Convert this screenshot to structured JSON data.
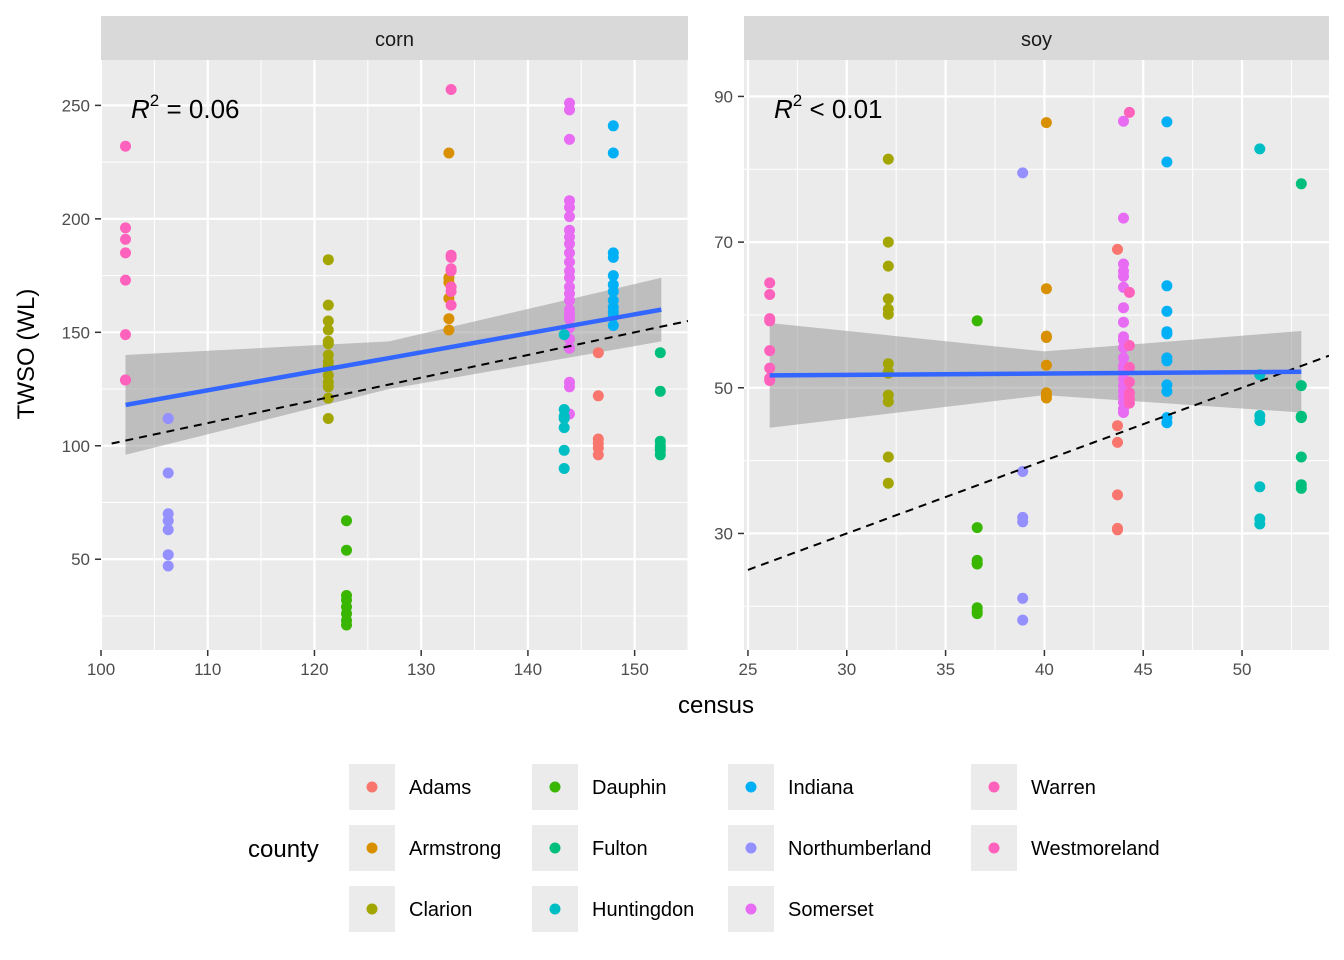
{
  "chart_data": {
    "type": "scatter",
    "xlabel": "census",
    "ylabel": "TWSO (WL)",
    "legend": {
      "title": "county",
      "position": "bottom",
      "entries": [
        {
          "name": "Adams",
          "color": "#F8766D"
        },
        {
          "name": "Armstrong",
          "color": "#D89000"
        },
        {
          "name": "Clarion",
          "color": "#A3A500"
        },
        {
          "name": "Dauphin",
          "color": "#39B600"
        },
        {
          "name": "Fulton",
          "color": "#00BF7D"
        },
        {
          "name": "Huntingdon",
          "color": "#00BFC4"
        },
        {
          "name": "Indiana",
          "color": "#00B0F6"
        },
        {
          "name": "Northumberland",
          "color": "#9590FF"
        },
        {
          "name": "Somerset",
          "color": "#E76BF3"
        },
        {
          "name": "Warren",
          "color": "#FF62BC"
        },
        {
          "name": "Westmoreland",
          "color": "#FF62BC"
        }
      ]
    },
    "panels": [
      {
        "strip": "corn",
        "r2_label": "R",
        "r2_sup": "2",
        "r2_value": " = 0.06",
        "xlim": [
          100,
          155
        ],
        "ylim": [
          10,
          270
        ],
        "xticks": [
          100,
          110,
          120,
          130,
          140,
          150
        ],
        "yticks": [
          50,
          100,
          150,
          200,
          250
        ],
        "fit_line": {
          "x": [
            102.3,
            152.5
          ],
          "y": [
            118,
            160
          ]
        },
        "ci_band": {
          "x": [
            102.3,
            127,
            152.5
          ],
          "upper": [
            140,
            146,
            174
          ],
          "lower": [
            96,
            125,
            146
          ]
        },
        "identity_line": {
          "x": [
            101,
            155
          ],
          "y": [
            101,
            155
          ]
        },
        "series": [
          {
            "county": "Warren",
            "x": [
              102.3,
              102.3,
              102.3,
              102.3,
              102.3,
              102.3,
              102.3,
              102.3
            ],
            "y": [
              232,
              196,
              191,
              185,
              173,
              149,
              129,
              129
            ]
          },
          {
            "county": "Northumberland",
            "x": [
              106.3,
              106.3,
              106.3,
              106.3,
              106.3,
              106.3,
              106.3,
              106.3
            ],
            "y": [
              112,
              88,
              70,
              67,
              63,
              52,
              47,
              112
            ]
          },
          {
            "county": "Clarion",
            "x": [
              121.3,
              121.3,
              121.3,
              121.3,
              121.3,
              121.3,
              121.3,
              121.3,
              121.3,
              121.3,
              121.3,
              121.3,
              121.3,
              121.3
            ],
            "y": [
              182,
              162,
              155,
              151,
              146,
              140,
              137,
              131,
              128,
              126,
              121,
              112,
              135,
              145
            ]
          },
          {
            "county": "Dauphin",
            "x": [
              123,
              123,
              123,
              123,
              123,
              123,
              123,
              123
            ],
            "y": [
              67,
              54,
              34,
              32,
              29,
              26,
              23,
              21
            ]
          },
          {
            "county": "Armstrong",
            "x": [
              132.6,
              132.6,
              132.6,
              132.6,
              132.6,
              132.6
            ],
            "y": [
              229,
              174,
              172,
              165,
              156,
              151
            ]
          },
          {
            "county": "Westmoreland",
            "x": [
              132.8,
              132.8,
              132.8,
              132.8,
              132.8,
              132.8,
              132.8,
              132.8
            ],
            "y": [
              257,
              184,
              183,
              178,
              177,
              170,
              168,
              162
            ]
          },
          {
            "county": "Somerset",
            "x": [
              143.9,
              143.9,
              143.9,
              143.9,
              143.9,
              143.9,
              143.9,
              143.9,
              143.9,
              143.9,
              143.9,
              143.9,
              143.9,
              143.9,
              143.9,
              143.9,
              143.9,
              143.9,
              143.9,
              143.9,
              143.9,
              143.9,
              143.9,
              143.9,
              143.9
            ],
            "y": [
              251,
              248,
              235,
              208,
              205,
              201,
              195,
              192,
              189,
              185,
              181,
              177,
              174,
              170,
              167,
              164,
              158,
              156,
              152,
              147,
              143,
              128,
              126,
              114,
              160
            ]
          },
          {
            "county": "Huntingdon",
            "x": [
              143.4,
              143.4,
              143.4,
              143.4,
              143.4,
              143.4,
              143.4
            ],
            "y": [
              149,
              116,
              113,
              108,
              98,
              90,
              112
            ]
          },
          {
            "county": "Adams",
            "x": [
              146.6,
              146.6,
              146.6,
              146.6,
              146.6,
              146.6
            ],
            "y": [
              141,
              122,
              103,
              101,
              99,
              96
            ]
          },
          {
            "county": "Indiana",
            "x": [
              148,
              148,
              148,
              148,
              148,
              148,
              148,
              148,
              148,
              148,
              148,
              148
            ],
            "y": [
              241,
              229,
              185,
              183,
              171,
              168,
              164,
              161,
              159,
              157,
              153,
              175
            ]
          },
          {
            "county": "Fulton",
            "x": [
              152.4,
              152.4,
              152.4,
              152.4,
              152.4,
              152.4,
              152.4
            ],
            "y": [
              141,
              124,
              102,
              100,
              98,
              96,
              99
            ]
          }
        ]
      },
      {
        "strip": "soy",
        "r2_label": "R",
        "r2_sup": "2",
        "r2_value": " < 0.01",
        "xlim": [
          24.8,
          54.4
        ],
        "ylim": [
          14,
          95
        ],
        "xticks": [
          25,
          30,
          35,
          40,
          45,
          50
        ],
        "yticks": [
          30,
          50,
          70,
          90
        ],
        "fit_line": {
          "x": [
            26.1,
            53
          ],
          "y": [
            51.7,
            52.2
          ]
        },
        "ci_band": {
          "x": [
            26.1,
            40,
            53
          ],
          "upper": [
            58.9,
            55,
            57.8
          ],
          "lower": [
            44.5,
            49,
            46.6
          ]
        },
        "identity_line": {
          "x": [
            25.0,
            54.4
          ],
          "y": [
            25.0,
            54.4
          ]
        },
        "series": [
          {
            "county": "Warren",
            "x": [
              26.1,
              26.1,
              26.1,
              26.1,
              26.1,
              26.1,
              26.1,
              26.1
            ],
            "y": [
              64.4,
              62.8,
              59.5,
              59.2,
              55.1,
              52.7,
              51.3,
              51.0
            ]
          },
          {
            "county": "Clarion",
            "x": [
              32.1,
              32.1,
              32.1,
              32.1,
              32.1,
              32.1,
              32.1,
              32.1,
              32.1,
              32.1,
              32.1,
              32.1,
              32.1
            ],
            "y": [
              81.4,
              70.0,
              66.7,
              62.2,
              60.8,
              60.1,
              53.3,
              52.2,
              49.0,
              48.1,
              40.5,
              36.9,
              52.0
            ]
          },
          {
            "county": "Dauphin",
            "x": [
              36.6,
              36.6,
              36.6,
              36.6,
              36.6,
              36.6,
              36.6,
              36.6
            ],
            "y": [
              59.2,
              30.8,
              26.3,
              25.8,
              19.8,
              19.3,
              19.0,
              25.9
            ]
          },
          {
            "county": "Northumberland",
            "x": [
              38.9,
              38.9,
              38.9,
              38.9,
              38.9,
              38.9
            ],
            "y": [
              79.5,
              38.5,
              32.2,
              31.6,
              21.1,
              18.1
            ]
          },
          {
            "county": "Armstrong",
            "x": [
              40.1,
              40.1,
              40.1,
              40.1,
              40.1,
              40.1,
              40.1,
              40.1
            ],
            "y": [
              86.4,
              63.6,
              57.1,
              56.9,
              53.1,
              49.3,
              48.6,
              48.9
            ]
          },
          {
            "county": "Adams",
            "x": [
              43.7,
              43.7,
              43.7,
              43.7,
              43.7,
              43.7
            ],
            "y": [
              69.0,
              44.8,
              42.5,
              35.3,
              30.7,
              30.5
            ]
          },
          {
            "county": "Somerset",
            "x": [
              44.0,
              44.0,
              44.0,
              44.0,
              44.0,
              44.0,
              44.0,
              44.0,
              44.0,
              44.0,
              44.0,
              44.0,
              44.0,
              44.0,
              44.0,
              44.0,
              44.0,
              44.0,
              44.0,
              44.0,
              44.0,
              44.0
            ],
            "y": [
              86.6,
              73.3,
              67.0,
              66.0,
              65.3,
              63.8,
              61.0,
              59.0,
              57.0,
              55.5,
              54.1,
              53.0,
              52.0,
              51.2,
              50.3,
              49.5,
              48.8,
              48.0,
              47.1,
              46.6,
              56.5,
              52.5
            ]
          },
          {
            "county": "Westmoreland",
            "x": [
              44.3,
              44.3,
              44.3,
              44.3,
              44.3,
              44.3,
              44.3,
              44.3
            ],
            "y": [
              87.8,
              63.1,
              55.8,
              52.8,
              50.8,
              49.3,
              48.5,
              47.9
            ]
          },
          {
            "county": "Indiana",
            "x": [
              46.2,
              46.2,
              46.2,
              46.2,
              46.2,
              46.2,
              46.2,
              46.2,
              46.2,
              46.2,
              46.2,
              46.2
            ],
            "y": [
              86.5,
              81.0,
              64.0,
              60.5,
              57.7,
              57.4,
              54.1,
              53.7,
              50.4,
              49.5,
              45.9,
              45.2
            ]
          },
          {
            "county": "Huntingdon",
            "x": [
              50.9,
              50.9,
              50.9,
              50.9,
              50.9,
              50.9,
              50.9
            ],
            "y": [
              82.8,
              51.8,
              46.2,
              45.5,
              36.4,
              32.0,
              31.3
            ]
          },
          {
            "county": "Fulton",
            "x": [
              53,
              53,
              53,
              53,
              53,
              53,
              53,
              53
            ],
            "y": [
              78.0,
              50.3,
              46.1,
              45.9,
              40.5,
              36.7,
              36.2,
              46.0
            ]
          }
        ]
      }
    ]
  }
}
